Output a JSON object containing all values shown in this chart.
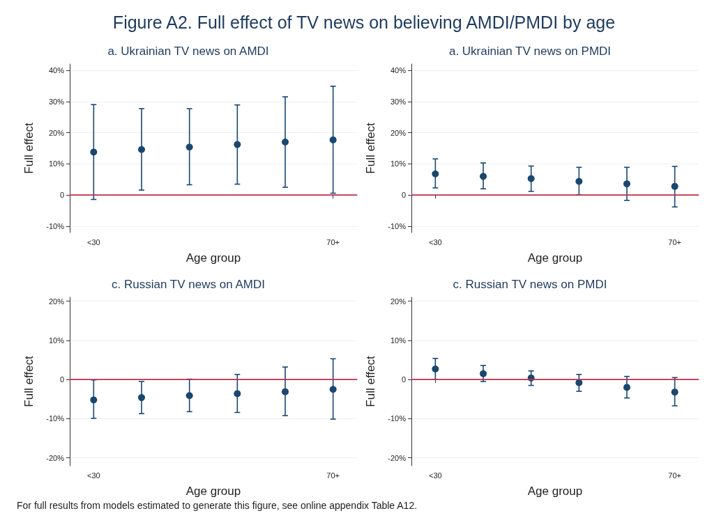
{
  "chart_data": [
    {
      "type": "scatter",
      "title": "a. Ukrainian TV news on AMDI",
      "xlabel": "Age group",
      "ylabel": "Full effect",
      "annotations": [
        "Figure A2. Full effect of TV news on believing AMDI/PMDI by age"
      ],
      "categories": [
        "<30",
        null,
        null,
        null,
        null,
        "70+"
      ],
      "series": [
        {
          "color": "#1a476f",
          "values": [
            13.8,
            14.6,
            15.4,
            16.2,
            17.0,
            17.7
          ],
          "errors": [
            [
              -1.4,
              29.0
            ],
            [
              1.6,
              27.7
            ],
            [
              3.3,
              27.7
            ],
            [
              3.5,
              28.9
            ],
            [
              2.5,
              31.5
            ],
            [
              0.6,
              34.9
            ]
          ]
        }
      ],
      "ylim": [
        -12,
        42
      ],
      "yticks": [
        {
          "value": -10,
          "label": "-10%"
        },
        {
          "value": 0,
          "label": "0"
        },
        {
          "value": 10,
          "label": "10%"
        },
        {
          "value": 20,
          "label": "20%"
        },
        {
          "value": 30,
          "label": "30%"
        },
        {
          "value": 40,
          "label": "40%"
        }
      ],
      "ref_lines": [
        {
          "axis": "y",
          "value": 0,
          "color": "#d62d4b"
        }
      ],
      "grid": "y",
      "marker": "circle"
    },
    {
      "type": "scatter",
      "title": "a. Ukrainian TV news on PMDI",
      "xlabel": "Age group",
      "ylabel": "Full effect",
      "categories": [
        "<30",
        null,
        null,
        null,
        null,
        "70+"
      ],
      "series": [
        {
          "color": "#1a476f",
          "values": [
            6.8,
            6.0,
            5.3,
            4.4,
            3.6,
            2.8
          ],
          "errors": [
            [
              2.3,
              11.6
            ],
            [
              2.0,
              10.3
            ],
            [
              1.2,
              9.3
            ],
            [
              0.1,
              8.9
            ],
            [
              -1.7,
              8.9
            ],
            [
              -3.8,
              9.2
            ]
          ]
        }
      ],
      "ylim": [
        -12,
        42
      ],
      "yticks": [
        {
          "value": -10,
          "label": "-10%"
        },
        {
          "value": 0,
          "label": "0"
        },
        {
          "value": 10,
          "label": "10%"
        },
        {
          "value": 20,
          "label": "20%"
        },
        {
          "value": 30,
          "label": "30%"
        },
        {
          "value": 40,
          "label": "40%"
        }
      ],
      "ref_lines": [
        {
          "axis": "y",
          "value": 0,
          "color": "#d62d4b"
        }
      ],
      "grid": "y",
      "marker": "circle"
    },
    {
      "type": "scatter",
      "title": "c. Russian TV news on AMDI",
      "xlabel": "Age group",
      "ylabel": "Full effect",
      "categories": [
        "<30",
        null,
        null,
        null,
        null,
        "70+"
      ],
      "series": [
        {
          "color": "#1a476f",
          "values": [
            -5.2,
            -4.6,
            -4.1,
            -3.6,
            -3.1,
            -2.5
          ],
          "errors": [
            [
              -9.9,
              -0.1
            ],
            [
              -8.7,
              -0.5
            ],
            [
              -8.2,
              0.1
            ],
            [
              -8.4,
              1.3
            ],
            [
              -9.2,
              3.2
            ],
            [
              -10.1,
              5.3
            ]
          ]
        }
      ],
      "ylim": [
        -22,
        21
      ],
      "yticks": [
        {
          "value": -20,
          "label": "-20%"
        },
        {
          "value": -10,
          "label": "-10%"
        },
        {
          "value": 0,
          "label": "0"
        },
        {
          "value": 10,
          "label": "10%"
        },
        {
          "value": 20,
          "label": "20%"
        }
      ],
      "ref_lines": [
        {
          "axis": "y",
          "value": 0,
          "color": "#d62d4b"
        }
      ],
      "grid": "y",
      "marker": "circle"
    },
    {
      "type": "scatter",
      "title": "c. Russian TV news on PMDI",
      "xlabel": "Age group",
      "ylabel": "Full effect",
      "annotations": [
        "For full results from models estimated to generate this figure, see online appendix Table A12."
      ],
      "categories": [
        "<30",
        null,
        null,
        null,
        null,
        "70+"
      ],
      "series": [
        {
          "color": "#1a476f",
          "values": [
            2.7,
            1.5,
            0.4,
            -0.8,
            -2.0,
            -3.2
          ],
          "errors": [
            [
              0,
              5.4
            ],
            [
              -0.5,
              3.6
            ],
            [
              -1.5,
              2.2
            ],
            [
              -3.0,
              1.3
            ],
            [
              -4.7,
              0.8
            ],
            [
              -6.7,
              0.5
            ]
          ]
        }
      ],
      "ylim": [
        -22,
        21
      ],
      "yticks": [
        {
          "value": -20,
          "label": "-20%"
        },
        {
          "value": -10,
          "label": "-10%"
        },
        {
          "value": 0,
          "label": "0"
        },
        {
          "value": 10,
          "label": "10%"
        },
        {
          "value": 20,
          "label": "20%"
        }
      ],
      "ref_lines": [
        {
          "axis": "y",
          "value": 0,
          "color": "#d62d4b"
        }
      ],
      "grid": "y",
      "marker": "circle"
    }
  ]
}
